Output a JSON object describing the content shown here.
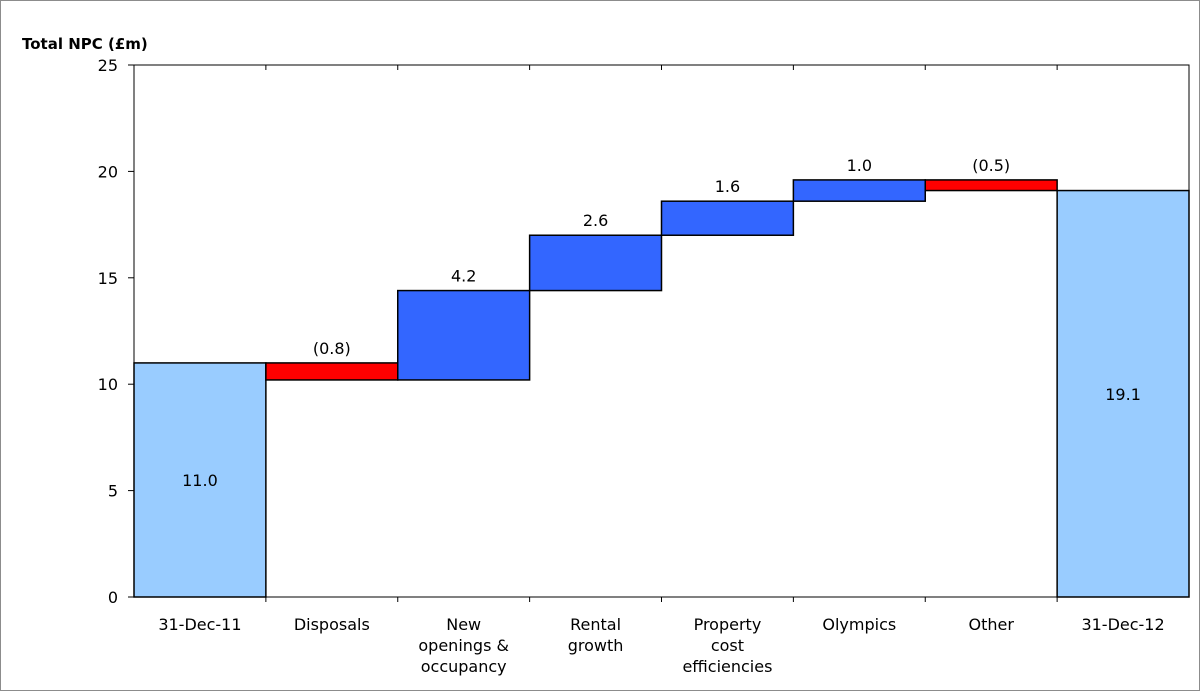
{
  "chart_data": {
    "type": "waterfall",
    "ylabel": "Total NPC (£m)",
    "ylim": [
      0,
      25
    ],
    "yticks": [
      0,
      5,
      10,
      15,
      20,
      25
    ],
    "grid": false,
    "categories": [
      [
        "31-Dec-11"
      ],
      [
        "Disposals"
      ],
      [
        "New",
        "openings &",
        "occupancy"
      ],
      [
        "Rental",
        "growth"
      ],
      [
        "Property",
        "cost",
        "efficiencies"
      ],
      [
        "Olympics"
      ],
      [
        "Other"
      ],
      [
        "31-Dec-12"
      ]
    ],
    "bars": [
      {
        "kind": "total",
        "value": 11.0,
        "label": "11.0"
      },
      {
        "kind": "decrease",
        "value": -0.8,
        "label": "(0.8)"
      },
      {
        "kind": "increase",
        "value": 4.2,
        "label": "4.2"
      },
      {
        "kind": "increase",
        "value": 2.6,
        "label": "2.6"
      },
      {
        "kind": "increase",
        "value": 1.6,
        "label": "1.6"
      },
      {
        "kind": "increase",
        "value": 1.0,
        "label": "1.0"
      },
      {
        "kind": "decrease",
        "value": -0.5,
        "label": "(0.5)"
      },
      {
        "kind": "total",
        "value": 19.1,
        "label": "19.1"
      }
    ],
    "colors": {
      "total": "#99ccff",
      "increase": "#3366ff",
      "decrease": "#ff0000",
      "outline": "#000000"
    }
  }
}
